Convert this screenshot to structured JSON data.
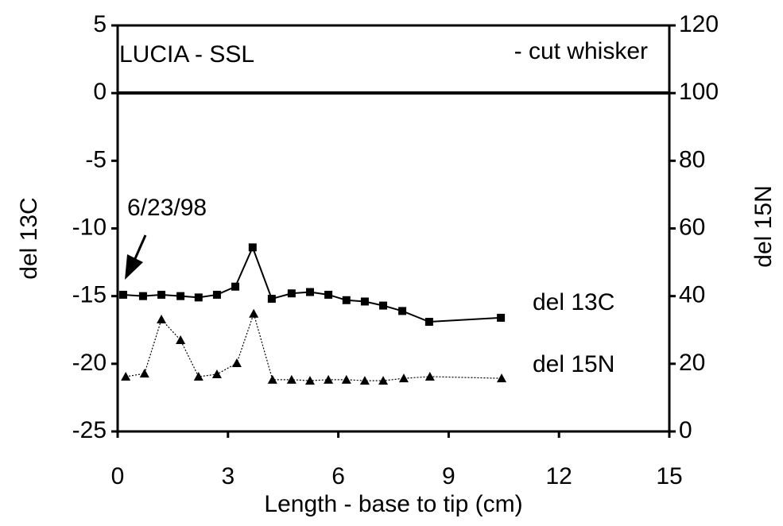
{
  "chart_data": {
    "type": "line",
    "title": "LUCIA - SSL",
    "subtitle": "- cut whisker",
    "annotation": "6/23/98",
    "x_label": "Length - base to tip (cm)",
    "y_label": "del 13C",
    "y2_label": "del 15N",
    "xlim": [
      0,
      15
    ],
    "xticks": [
      0,
      3,
      6,
      9,
      12,
      15
    ],
    "ylim": [
      -25,
      5
    ],
    "yticks": [
      -25,
      -20,
      -15,
      -10,
      -5,
      0,
      5
    ],
    "y2lim": [
      0,
      120
    ],
    "y2ticks": [
      0,
      20,
      40,
      60,
      80,
      100,
      120
    ],
    "series": [
      {
        "name": "del 13C",
        "color": "#000000",
        "marker": "square",
        "x": [
          0.15,
          0.69,
          1.19,
          1.71,
          2.2,
          2.7,
          3.2,
          3.67,
          4.19,
          4.73,
          5.23,
          5.73,
          6.22,
          6.72,
          7.22,
          7.74,
          8.47,
          10.42
        ],
        "values": [
          -14.9,
          -15.0,
          -14.9,
          -15.0,
          -15.1,
          -14.9,
          -14.3,
          -11.4,
          -15.2,
          -14.8,
          -14.7,
          -14.9,
          -15.3,
          -15.4,
          -15.7,
          -16.1,
          -16.9,
          -16.6
        ]
      },
      {
        "name": "del 15N",
        "color": "#000000",
        "marker": "triangle",
        "axis": "y2",
        "x": [
          0.22,
          0.73,
          1.19,
          1.71,
          2.2,
          2.7,
          3.24,
          3.7,
          4.21,
          4.73,
          5.23,
          5.73,
          6.22,
          6.72,
          7.22,
          7.78,
          8.49,
          10.44
        ],
        "values": [
          16.2,
          17.1,
          33.1,
          27.0,
          16.2,
          16.9,
          20.2,
          34.8,
          15.3,
          15.3,
          15.0,
          15.3,
          15.3,
          15.0,
          15.0,
          15.7,
          16.2,
          15.7
        ]
      }
    ]
  }
}
